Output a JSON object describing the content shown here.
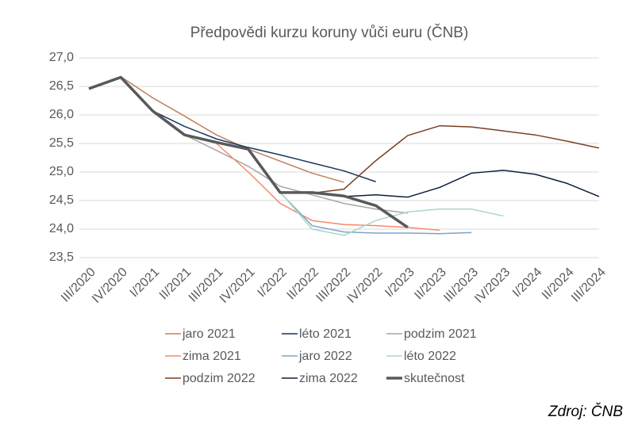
{
  "chart_data": {
    "type": "line",
    "title": "Předpovědi kurzu koruny vůči euru (ČNB)",
    "source": "Zdroj: ČNB",
    "categories": [
      "III/2020",
      "IV/2020",
      "I/2021",
      "II/2021",
      "III/2021",
      "IV/2021",
      "I/2022",
      "II/2022",
      "III/2022",
      "IV/2022",
      "I/2023",
      "II/2023",
      "III/2023",
      "IV/2023",
      "I/2024",
      "II/2024",
      "III/2024"
    ],
    "ylim": [
      23.5,
      27.0
    ],
    "yticks": [
      {
        "value": 23.5,
        "label": "23,5"
      },
      {
        "value": 24.0,
        "label": "24,0"
      },
      {
        "value": 24.5,
        "label": "24,5"
      },
      {
        "value": 25.0,
        "label": "25,0"
      },
      {
        "value": 25.5,
        "label": "25,5"
      },
      {
        "value": 26.0,
        "label": "26,0"
      },
      {
        "value": 26.5,
        "label": "26,5"
      },
      {
        "value": 27.0,
        "label": "27,0"
      }
    ],
    "grid": true,
    "series": [
      {
        "name": "jaro 2021",
        "color": "#c0805a",
        "width": 1.5,
        "values": [
          null,
          26.67,
          26.3,
          25.98,
          25.65,
          25.4,
          25.19,
          24.98,
          24.82,
          null,
          null,
          null,
          null,
          null,
          null,
          null,
          null
        ]
      },
      {
        "name": "léto 2021",
        "color": "#17375e",
        "width": 1.5,
        "values": [
          null,
          null,
          26.07,
          25.8,
          25.58,
          25.43,
          25.3,
          25.16,
          25.02,
          24.83,
          null,
          null,
          null,
          null,
          null,
          null,
          null
        ]
      },
      {
        "name": "podzim 2021",
        "color": "#a6a6a6",
        "width": 1.5,
        "values": [
          null,
          null,
          null,
          25.65,
          25.38,
          25.1,
          24.75,
          24.6,
          24.45,
          24.35,
          24.28,
          null,
          null,
          null,
          null,
          null,
          null
        ]
      },
      {
        "name": "zima 2021",
        "color": "#f4896d",
        "width": 1.5,
        "values": [
          null,
          null,
          null,
          null,
          25.5,
          25.0,
          24.45,
          24.15,
          24.08,
          24.06,
          24.03,
          23.98,
          null,
          null,
          null,
          null,
          null
        ]
      },
      {
        "name": "jaro 2022",
        "color": "#7ca5c7",
        "width": 1.5,
        "values": [
          null,
          null,
          null,
          null,
          null,
          null,
          24.64,
          24.06,
          23.95,
          23.93,
          23.93,
          23.92,
          23.94,
          null,
          null,
          null,
          null
        ]
      },
      {
        "name": "léto 2022",
        "color": "#a9d7c6",
        "width": 1.5,
        "values": [
          null,
          null,
          null,
          null,
          null,
          null,
          24.65,
          24.0,
          23.89,
          24.15,
          24.3,
          24.35,
          24.35,
          24.23,
          null,
          null,
          null
        ]
      },
      {
        "name": "podzim 2022",
        "color": "#7b3f22",
        "width": 1.5,
        "values": [
          null,
          null,
          null,
          null,
          null,
          null,
          null,
          24.63,
          24.7,
          25.2,
          25.64,
          25.81,
          25.79,
          25.72,
          25.65,
          25.54,
          25.42
        ]
      },
      {
        "name": "zima 2022",
        "color": "#0d1f3c",
        "width": 1.5,
        "values": [
          null,
          null,
          null,
          null,
          null,
          null,
          null,
          null,
          24.57,
          24.6,
          24.56,
          24.73,
          24.98,
          25.03,
          24.96,
          24.8,
          24.57
        ]
      },
      {
        "name": "skutečnost",
        "color": "#595959",
        "width": 3.5,
        "values": [
          26.46,
          26.66,
          26.07,
          25.65,
          25.52,
          25.4,
          24.64,
          24.64,
          24.58,
          24.41,
          24.03,
          null,
          null,
          null,
          null,
          null,
          null
        ]
      }
    ]
  }
}
